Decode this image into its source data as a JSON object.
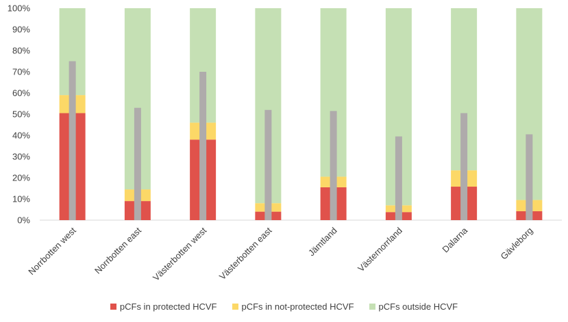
{
  "chart_data": {
    "type": "bar",
    "stacked": true,
    "title": "",
    "xlabel": "",
    "ylabel": "",
    "ylim": [
      0,
      100
    ],
    "yticks": [
      "0%",
      "10%",
      "20%",
      "30%",
      "40%",
      "50%",
      "60%",
      "70%",
      "80%",
      "90%",
      "100%"
    ],
    "categories": [
      "Norrbotten west",
      "Norrbotten east",
      "Västerbotten west",
      "Västerbotten east",
      "Jämtland",
      "Västernorrland",
      "Dalarna",
      "Gävleborg"
    ],
    "series": [
      {
        "name": "pCFs in protected HCVF",
        "color": "#E0524B",
        "values": [
          50.5,
          9,
          38,
          4,
          15.5,
          3.8,
          15.8,
          4.2
        ]
      },
      {
        "name": "pCFs in not-protected HCVF",
        "color": "#FCD867",
        "values": [
          8.5,
          5.5,
          8,
          4,
          5,
          3.2,
          7.7,
          5.3
        ]
      },
      {
        "name": "pCFs outside HCVF",
        "color": "#C5E0B4",
        "values": [
          41,
          85.5,
          54,
          92,
          79.5,
          93,
          76.5,
          90.5
        ]
      }
    ],
    "overlay_series": {
      "name": "",
      "color": "#AFABAB",
      "values": [
        75,
        53,
        70,
        52,
        51.5,
        39.5,
        50.5,
        40.5
      ]
    },
    "legend_position": "bottom"
  }
}
